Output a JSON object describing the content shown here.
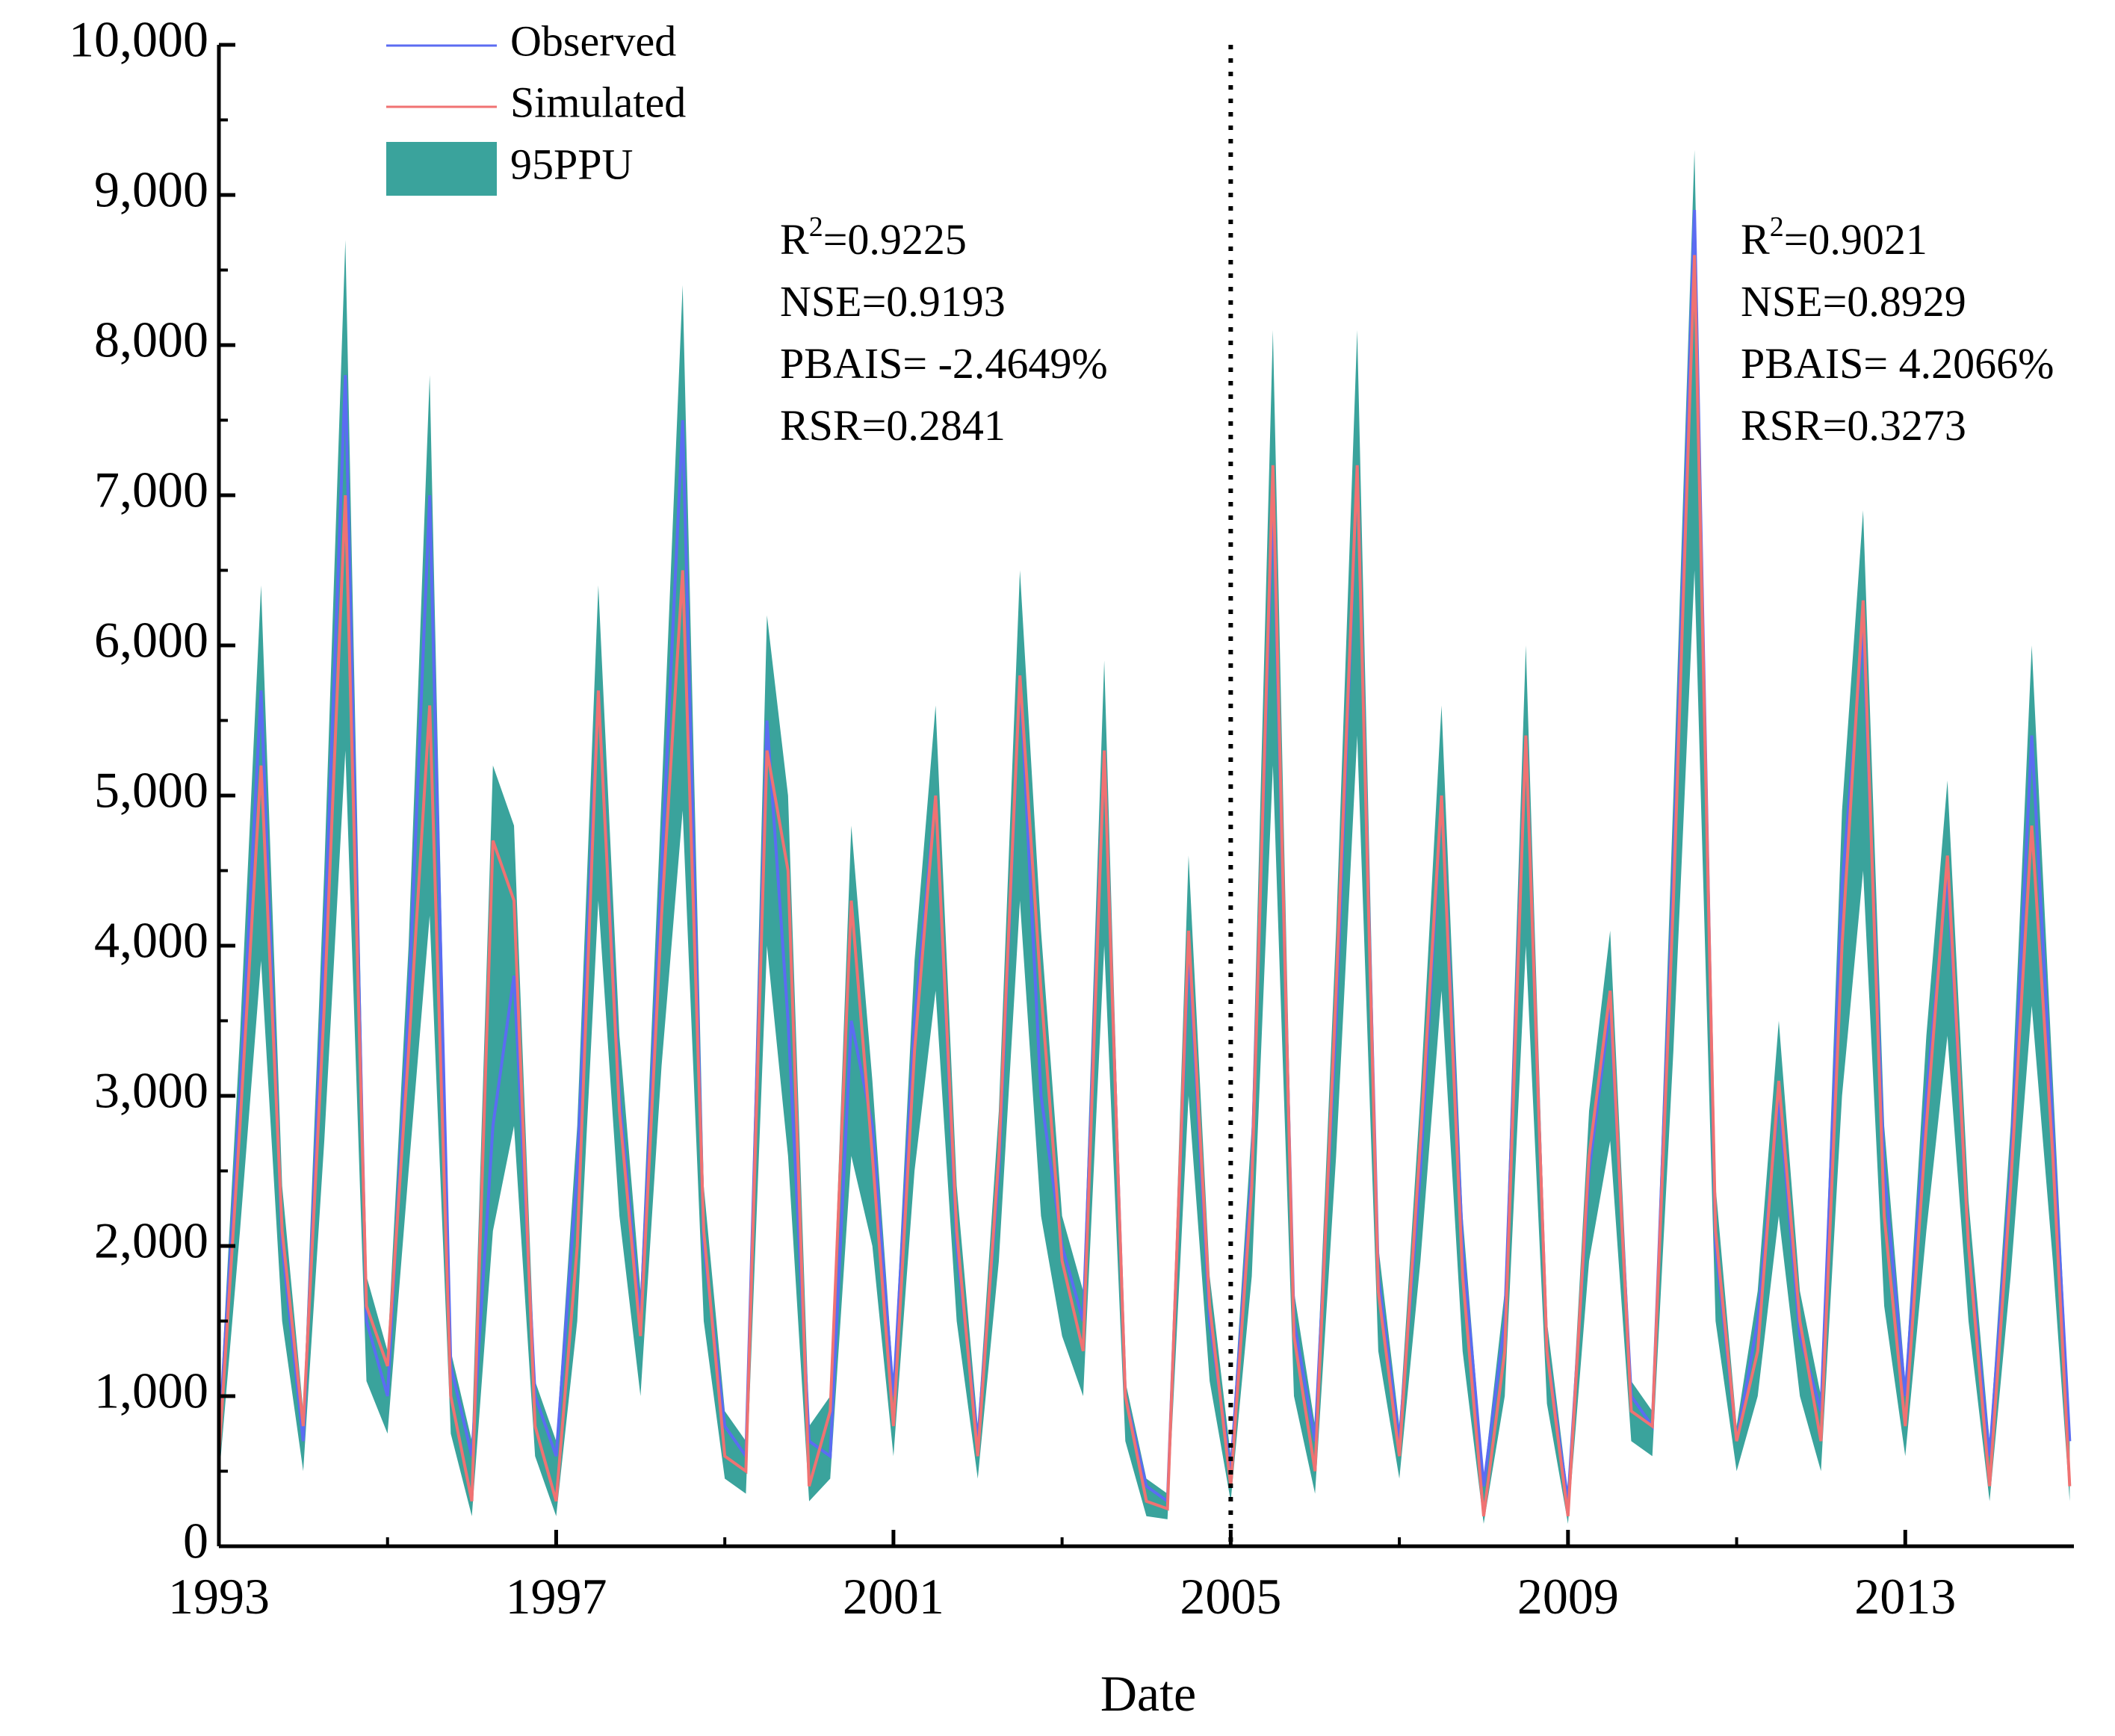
{
  "chart_data": {
    "type": "line",
    "x_label": "Date",
    "xlim": [
      1993,
      2015
    ],
    "xticks": [
      1993,
      1997,
      2001,
      2005,
      2009,
      2013
    ],
    "xminor": [
      1995,
      1999,
      2003,
      2007,
      2011
    ],
    "ylim": [
      0,
      10000
    ],
    "yticks": [
      0,
      {
        "value": 1000,
        "label": "1,000"
      },
      {
        "value": 2000,
        "label": "2,000"
      },
      {
        "value": 3000,
        "label": "3,000"
      },
      {
        "value": 4000,
        "label": "4,000"
      },
      {
        "value": 5000,
        "label": "5,000"
      },
      {
        "value": 6000,
        "label": "6,000"
      },
      {
        "value": 7000,
        "label": "7,000"
      },
      {
        "value": 8000,
        "label": "8,000"
      },
      {
        "value": 9000,
        "label": "9,000"
      },
      {
        "value": 10000,
        "label": "10,000"
      }
    ],
    "yminor": [
      500,
      1500,
      2500,
      3500,
      4500,
      5500,
      6500,
      7500,
      8500,
      9500
    ],
    "divider_x": 2005,
    "legend": "upper left",
    "x": [
      1993,
      1993.25,
      1993.5,
      1993.75,
      1994,
      1994.25,
      1994.5,
      1994.75,
      1995,
      1995.25,
      1995.5,
      1995.75,
      1996,
      1996.25,
      1996.5,
      1996.75,
      1997,
      1997.25,
      1997.5,
      1997.75,
      1998,
      1998.25,
      1998.5,
      1998.75,
      1999,
      1999.25,
      1999.5,
      1999.75,
      2000,
      2000.25,
      2000.5,
      2000.75,
      2001,
      2001.25,
      2001.5,
      2001.75,
      2002,
      2002.25,
      2002.5,
      2002.75,
      2003,
      2003.25,
      2003.5,
      2003.75,
      2004,
      2004.25,
      2004.5,
      2004.75,
      2005,
      2005.25,
      2005.5,
      2005.75,
      2006,
      2006.25,
      2006.5,
      2006.75,
      2007,
      2007.25,
      2007.5,
      2007.75,
      2008,
      2008.25,
      2008.5,
      2008.75,
      2009,
      2009.25,
      2009.5,
      2009.75,
      2010,
      2010.25,
      2010.5,
      2010.75,
      2011,
      2011.25,
      2011.5,
      2011.75,
      2012,
      2012.25,
      2012.5,
      2012.75,
      2013,
      2013.25,
      2013.5,
      2013.75,
      2014,
      2014.25,
      2014.5,
      2014.75,
      2014.95
    ],
    "band": {
      "name": "95PPU",
      "color": "#3aa39c",
      "lower": [
        450,
        2100,
        3900,
        1500,
        500,
        2700,
        5300,
        1100,
        750,
        2500,
        4200,
        750,
        200,
        2100,
        2800,
        600,
        200,
        1500,
        4300,
        2200,
        1000,
        3200,
        4900,
        1500,
        450,
        350,
        4000,
        2600,
        300,
        450,
        2600,
        2000,
        600,
        2500,
        3700,
        1500,
        450,
        1900,
        4300,
        2200,
        1400,
        1000,
        4000,
        700,
        200,
        180,
        3000,
        1100,
        300,
        1800,
        5200,
        1000,
        350,
        2600,
        5400,
        1300,
        450,
        1900,
        3700,
        1300,
        150,
        1000,
        4000,
        950,
        150,
        1900,
        2700,
        700,
        600,
        3300,
        6500,
        1500,
        500,
        1000,
        2200,
        1000,
        500,
        3000,
        4500,
        1600,
        600,
        2100,
        3400,
        1500,
        300,
        1800,
        3600,
        1900,
        300
      ],
      "upper": [
        800,
        3400,
        6400,
        2400,
        900,
        4500,
        8700,
        1800,
        1300,
        4000,
        7800,
        1300,
        700,
        5200,
        4800,
        1100,
        700,
        2800,
        6400,
        3400,
        1700,
        5000,
        8400,
        2400,
        900,
        700,
        6200,
        5000,
        800,
        1000,
        4800,
        3100,
        1100,
        3900,
        5600,
        2400,
        800,
        2900,
        6500,
        4100,
        2200,
        1700,
        5900,
        1100,
        450,
        350,
        4600,
        1800,
        600,
        2800,
        8100,
        1700,
        800,
        4100,
        8100,
        2000,
        800,
        3000,
        5600,
        2200,
        450,
        1700,
        6000,
        1500,
        350,
        2900,
        4100,
        1100,
        900,
        5000,
        9300,
        2400,
        800,
        1700,
        3500,
        1700,
        1000,
        4900,
        6900,
        2800,
        1100,
        3400,
        5100,
        2300,
        700,
        2800,
        6000,
        3100,
        800
      ]
    },
    "series": [
      {
        "name": "Observed",
        "color": "#5b6cf2",
        "values": [
          700,
          3000,
          5700,
          2000,
          700,
          4000,
          7800,
          1500,
          1000,
          3600,
          7000,
          1200,
          600,
          2800,
          3800,
          1000,
          600,
          2500,
          5700,
          3000,
          1500,
          4500,
          7500,
          2000,
          800,
          600,
          5500,
          3500,
          700,
          600,
          3500,
          2800,
          1000,
          3500,
          5000,
          2000,
          700,
          2500,
          5800,
          3000,
          2000,
          1500,
          5300,
          1000,
          400,
          300,
          4000,
          1500,
          500,
          2500,
          7000,
          1500,
          700,
          3500,
          7200,
          1800,
          700,
          2500,
          5000,
          2000,
          400,
          1500,
          5400,
          1300,
          300,
          2500,
          3600,
          1000,
          800,
          4500,
          8900,
          2000,
          700,
          1500,
          3000,
          1400,
          900,
          4400,
          6100,
          2500,
          1000,
          3000,
          4500,
          2000,
          600,
          2500,
          5400,
          2800,
          700
        ]
      },
      {
        "name": "Simulated",
        "color": "#f07272",
        "values": [
          600,
          2800,
          5200,
          2100,
          800,
          3600,
          7000,
          1600,
          1200,
          3300,
          5600,
          1000,
          300,
          4700,
          4300,
          800,
          300,
          2000,
          5700,
          2900,
          1400,
          4200,
          6500,
          2100,
          600,
          500,
          5300,
          4500,
          400,
          900,
          4300,
          2600,
          800,
          3300,
          5000,
          2100,
          600,
          2600,
          5800,
          3700,
          1900,
          1300,
          5300,
          1000,
          300,
          250,
          4100,
          1600,
          400,
          2400,
          7200,
          1400,
          500,
          3700,
          7200,
          1700,
          600,
          2700,
          5000,
          1800,
          200,
          1300,
          5400,
          1300,
          200,
          2600,
          3700,
          900,
          800,
          4300,
          8600,
          2100,
          700,
          1300,
          3100,
          1500,
          700,
          4000,
          6300,
          2200,
          800,
          2800,
          4600,
          2000,
          400,
          2400,
          4800,
          2600,
          400
        ]
      }
    ],
    "annotations": [
      {
        "base": "R",
        "sup": "2",
        "rest": "=0.9225",
        "lines": [
          "NSE=0.9193",
          "PBAIS= -2.4649%",
          "RSR=0.2841"
        ]
      },
      {
        "base": "R",
        "sup": "2",
        "rest": "=0.9021",
        "lines": [
          "NSE=0.8929",
          "PBAIS= 4.2066%",
          "RSR=0.3273"
        ]
      }
    ]
  }
}
